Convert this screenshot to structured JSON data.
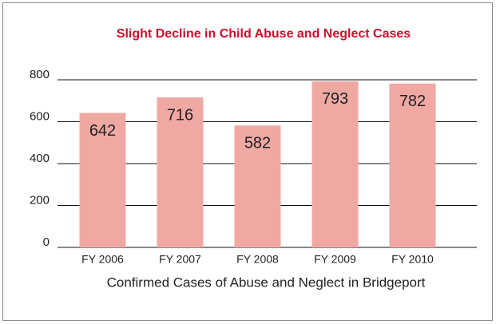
{
  "chart_data": {
    "type": "bar",
    "title": "Slight Decline in Child Abuse and Neglect Cases",
    "x_label": "Confirmed Cases of Abuse and Neglect in Bridgeport",
    "categories": [
      "FY 2006",
      "FY 2007",
      "FY 2008",
      "FY 2009",
      "FY 2010"
    ],
    "values": [
      642,
      716,
      582,
      793,
      782
    ],
    "color": "#f0a8a3",
    "ylim": [
      0,
      800
    ],
    "yticks": [
      0,
      200,
      400,
      600,
      800
    ],
    "grid": true
  }
}
